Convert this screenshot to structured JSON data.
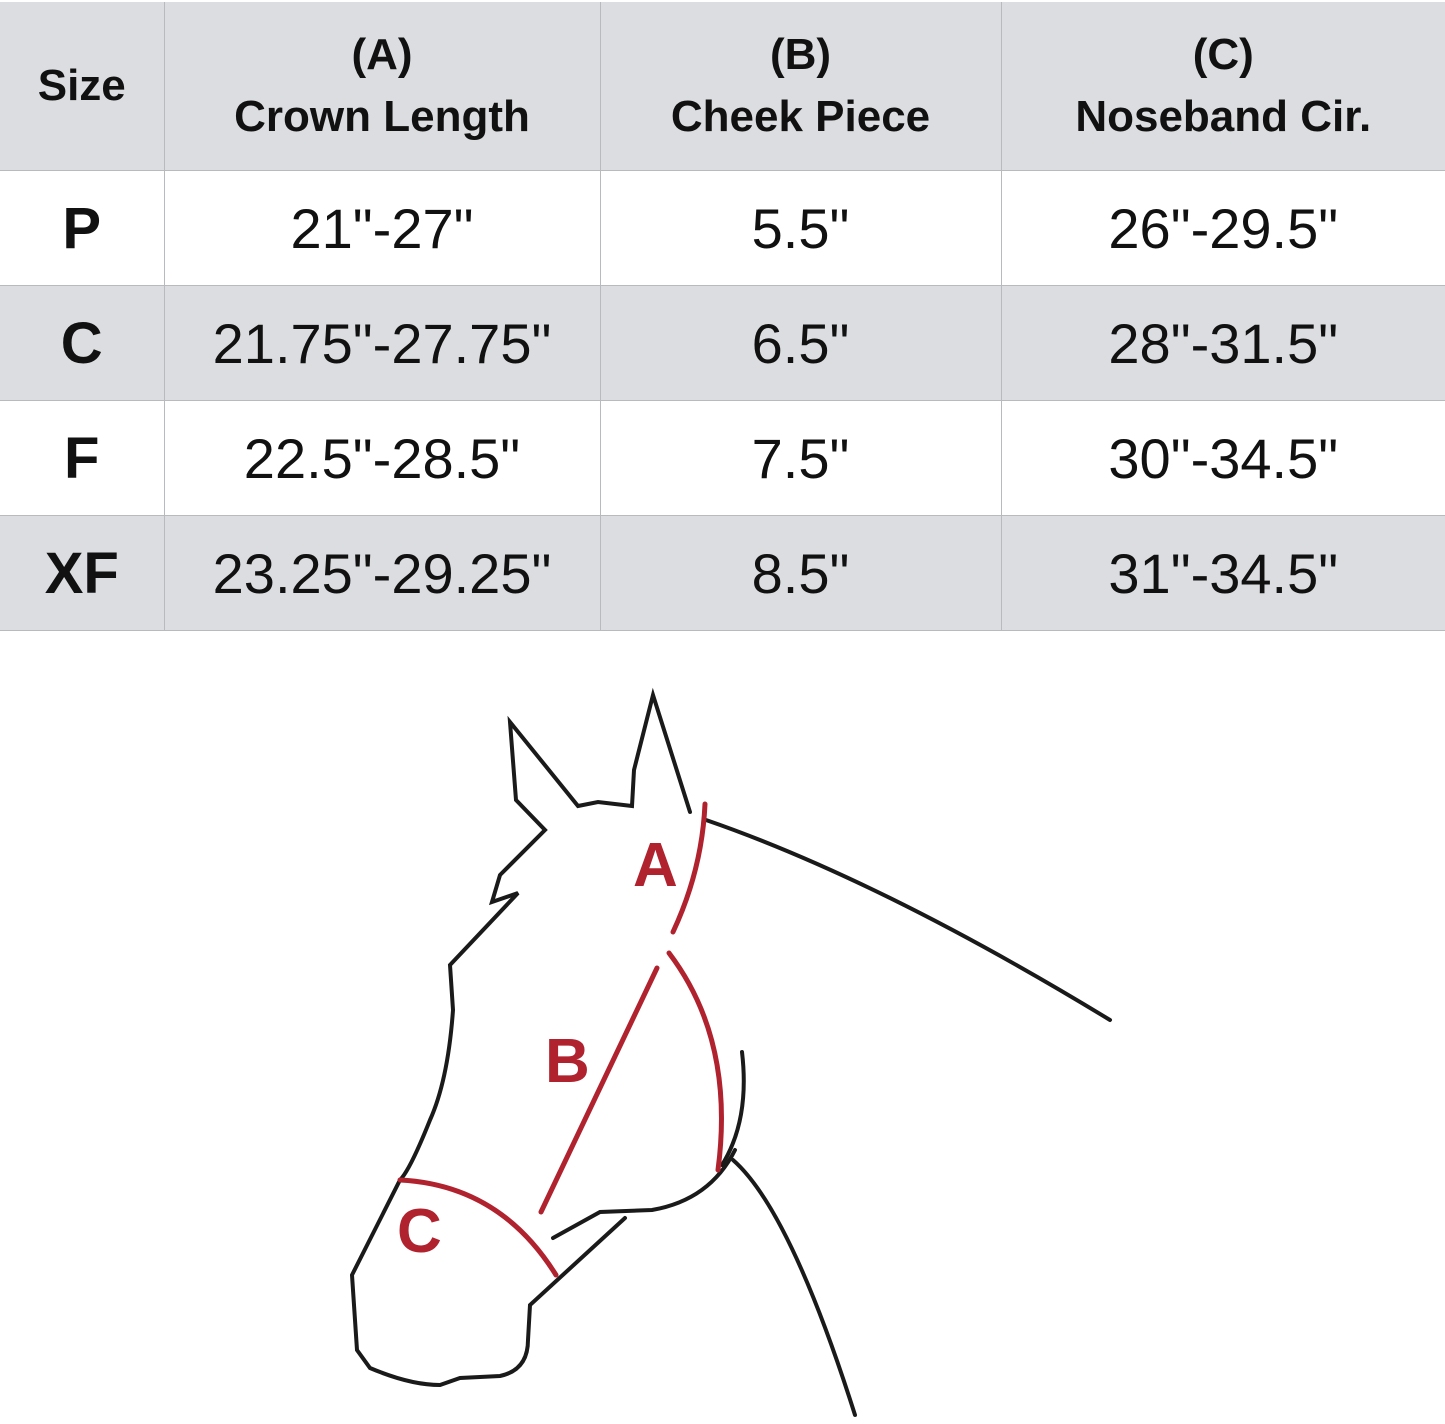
{
  "table": {
    "headers": [
      {
        "letter": "",
        "label": "Size"
      },
      {
        "letter": "(A)",
        "label": "Crown Length"
      },
      {
        "letter": "(B)",
        "label": "Cheek Piece"
      },
      {
        "letter": "(C)",
        "label": "Noseband Cir."
      }
    ],
    "rows": [
      {
        "size": "P",
        "crown": "21\"-27\"",
        "cheek": "5.5\"",
        "noseband": "26\"-29.5\""
      },
      {
        "size": "C",
        "crown": "21.75\"-27.75\"",
        "cheek": "6.5\"",
        "noseband": "28\"-31.5\""
      },
      {
        "size": "F",
        "crown": "22.5\"-28.5\"",
        "cheek": "7.5\"",
        "noseband": "30\"-34.5\""
      },
      {
        "size": "XF",
        "crown": "23.25\"-29.25\"",
        "cheek": "8.5\"",
        "noseband": "31\"-34.5\""
      }
    ]
  },
  "diagram": {
    "labels": {
      "a": "A",
      "b": "B",
      "c": "C"
    },
    "outline_color": "#1a1a1a",
    "measure_color": "#b0222e"
  }
}
